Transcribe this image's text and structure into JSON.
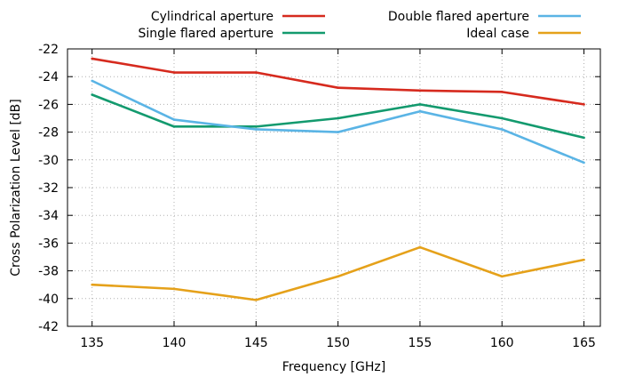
{
  "chart_data": {
    "type": "line",
    "xlabel": "Frequency [GHz]",
    "ylabel": "Cross Polarization Level [dB]",
    "x": [
      135,
      140,
      145,
      150,
      155,
      160,
      165
    ],
    "xlim": [
      133.5,
      166
    ],
    "ylim": [
      -42,
      -22
    ],
    "xticks": [
      135,
      140,
      145,
      150,
      155,
      160,
      165
    ],
    "yticks": [
      -22,
      -24,
      -26,
      -28,
      -30,
      -32,
      -34,
      -36,
      -38,
      -40,
      -42
    ],
    "grid": true,
    "legend_placement": "top, outside plot area, two columns",
    "series": [
      {
        "name": "Cylindrical aperture",
        "color": "#d62a1e",
        "values": [
          -22.7,
          -23.7,
          -23.7,
          -24.8,
          -25.0,
          -25.1,
          -26.0
        ]
      },
      {
        "name": "Single flared aperture",
        "color": "#139a6e",
        "values": [
          -25.3,
          -27.6,
          -27.6,
          -27.0,
          -26.0,
          -27.0,
          -28.4
        ]
      },
      {
        "name": "Double flared aperture",
        "color": "#5ab4e5",
        "values": [
          -24.3,
          -27.1,
          -27.8,
          -28.0,
          -26.5,
          -27.8,
          -30.2
        ]
      },
      {
        "name": "Ideal case",
        "color": "#e5a11a",
        "values": [
          -39.0,
          -39.3,
          -40.1,
          -38.4,
          -36.3,
          -38.4,
          -37.2
        ]
      }
    ]
  }
}
